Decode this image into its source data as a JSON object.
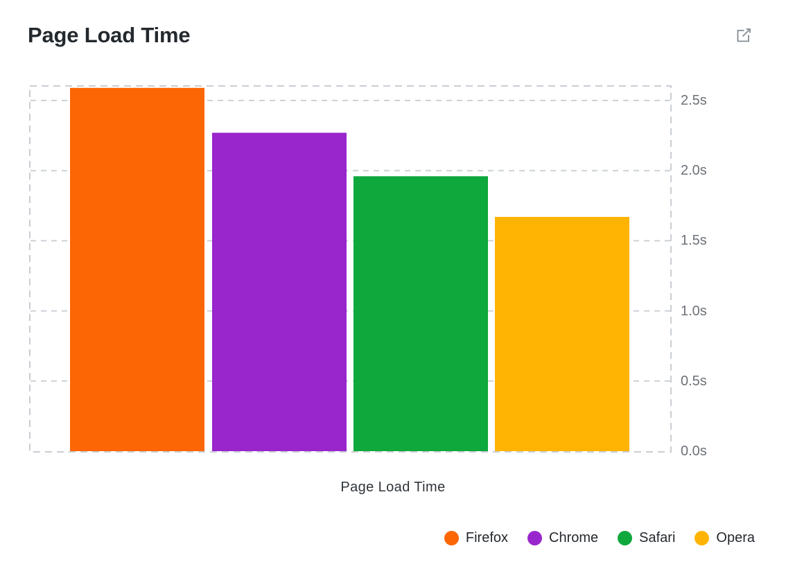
{
  "header": {
    "title": "Page Load Time",
    "action_icon": "external-link"
  },
  "chart_data": {
    "type": "bar",
    "title": "Page Load Time",
    "xlabel": "Page Load Time",
    "ylabel": "",
    "unit": "s",
    "categories": [
      "Firefox",
      "Chrome",
      "Safari",
      "Opera"
    ],
    "values": [
      2.59,
      2.27,
      1.96,
      1.67
    ],
    "colors": [
      "#fc6605",
      "#9926cd",
      "#0ea83d",
      "#ffb404"
    ],
    "y_ticks": [
      {
        "value": 0.0,
        "label": "0.0s"
      },
      {
        "value": 0.5,
        "label": "0.5s"
      },
      {
        "value": 1.0,
        "label": "1.0s"
      },
      {
        "value": 1.5,
        "label": "1.5s"
      },
      {
        "value": 2.0,
        "label": "2.0s"
      },
      {
        "value": 2.5,
        "label": "2.5s"
      }
    ],
    "ylim": [
      0,
      2.61
    ],
    "grid": "horizontal-dashed",
    "legend_position": "bottom-right"
  },
  "style_colors": {
    "grid": "#ccd1d6",
    "frame": "#c9ced3",
    "title_text": "#24292e",
    "tick_text": "#6b7177",
    "xlabel_text": "#2f3439",
    "legend_text": "#24292e",
    "icon_stroke": "#848b91"
  }
}
